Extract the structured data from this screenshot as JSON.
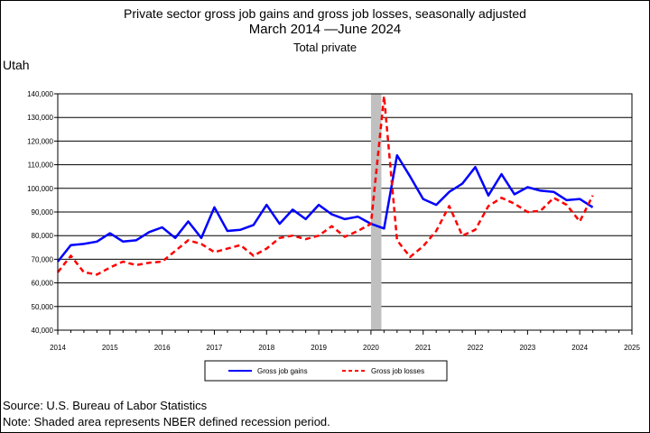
{
  "header": {
    "title": "Private sector gross job gains and gross job losses, seasonally adjusted",
    "subtitle": "March 2014 —June 2024",
    "subtitle2": "Total private",
    "region": "Utah"
  },
  "footer": {
    "source": "Source: U.S. Bureau of Labor Statistics",
    "note": "Note: Shaded area represents NBER defined recession period."
  },
  "chart_data": {
    "type": "line",
    "title": "Private sector gross job gains and gross job losses, seasonally adjusted",
    "xlim": [
      2014,
      2025
    ],
    "ylim": [
      40000,
      140000
    ],
    "x_ticks": [
      "2014",
      "2015",
      "2016",
      "2017",
      "2018",
      "2019",
      "2020",
      "2021",
      "2022",
      "2023",
      "2024",
      "2025"
    ],
    "y_ticks": [
      "40,000",
      "50,000",
      "60,000",
      "70,000",
      "80,000",
      "90,000",
      "100,000",
      "110,000",
      "120,000",
      "130,000",
      "140,000"
    ],
    "grid": "horizontal",
    "legend_position": "bottom",
    "recession": {
      "start": 2020.0,
      "end": 2020.2
    },
    "recession_color": "#c0c0c0",
    "x": [
      2014.0,
      2014.25,
      2014.5,
      2014.75,
      2015.0,
      2015.25,
      2015.5,
      2015.75,
      2016.0,
      2016.25,
      2016.5,
      2016.75,
      2017.0,
      2017.25,
      2017.5,
      2017.75,
      2018.0,
      2018.25,
      2018.5,
      2018.75,
      2019.0,
      2019.25,
      2019.5,
      2019.75,
      2020.0,
      2020.25,
      2020.5,
      2020.75,
      2021.0,
      2021.25,
      2021.5,
      2021.75,
      2022.0,
      2022.25,
      2022.5,
      2022.75,
      2023.0,
      2023.25,
      2023.5,
      2023.75,
      2024.0,
      2024.25
    ],
    "series": [
      {
        "name": "Gross job gains",
        "color": "#0000ff",
        "dash": "solid",
        "values": [
          69000,
          76000,
          76500,
          77500,
          81000,
          77500,
          78000,
          81500,
          83500,
          79000,
          86000,
          79000,
          92000,
          82000,
          82500,
          84500,
          93000,
          85000,
          91000,
          87000,
          93000,
          89000,
          87000,
          88000,
          85000,
          83000,
          114000,
          105000,
          95500,
          93000,
          98500,
          102000,
          109000,
          97000,
          106000,
          97500,
          100500,
          99000,
          98500,
          95000,
          95500,
          92000
        ]
      },
      {
        "name": "Gross job losses",
        "color": "#ff0000",
        "dash": "dashed",
        "values": [
          64500,
          71500,
          64500,
          63500,
          66500,
          69000,
          67500,
          68500,
          69000,
          73500,
          78000,
          76500,
          73000,
          74500,
          76000,
          71500,
          74500,
          79000,
          80000,
          78500,
          80000,
          84000,
          79500,
          82000,
          85000,
          139000,
          78000,
          71000,
          75500,
          82000,
          92500,
          80000,
          82500,
          92500,
          96000,
          93500,
          90000,
          90500,
          96000,
          93000,
          86000,
          97000
        ]
      }
    ]
  }
}
